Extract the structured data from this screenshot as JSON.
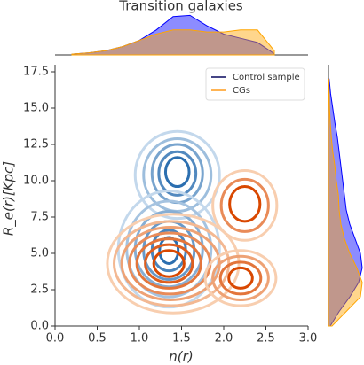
{
  "chart_data": {
    "type": "kde",
    "title": "Transition galaxies",
    "x_label": "n(r)",
    "y_label": "R_e(r)[Kpc]",
    "xlim": [
      0,
      3
    ],
    "ylim": [
      0,
      17.5
    ],
    "xticks": [
      {
        "value": 0,
        "label": "0.0"
      },
      0.5,
      {
        "value": 1,
        "label": "1.0"
      },
      1.5,
      {
        "value": 2,
        "label": "2.0"
      },
      2.5,
      {
        "value": 3,
        "label": "3.0"
      }
    ],
    "yticks": [
      {
        "value": 0,
        "label": "0.0"
      },
      2.5,
      {
        "value": 5,
        "label": "5.0"
      },
      7.5,
      {
        "value": 10,
        "label": "10.0"
      },
      12.5,
      {
        "value": 15,
        "label": "15.0"
      },
      17.5
    ],
    "legend_position": "upper right",
    "series": [
      {
        "name": "Control sample",
        "color": "#0000ff",
        "legend_color": "#08085e",
        "contour_colors": [
          "#deebf7",
          "#2c6fb0"
        ],
        "contours": [
          [
            [
              1.45,
              10.4,
              0.5,
              3.0
            ],
            [
              1.45,
              10.4,
              0.4,
              2.5
            ],
            [
              1.45,
              10.5,
              0.3,
              2.0
            ],
            [
              1.45,
              10.5,
              0.22,
              1.5
            ],
            [
              1.45,
              10.6,
              0.14,
              1.0
            ]
          ],
          [
            [
              1.35,
              5.3,
              0.6,
              4.0
            ],
            [
              1.35,
              5.3,
              0.5,
              3.3
            ],
            [
              1.35,
              5.3,
              0.4,
              2.6
            ],
            [
              1.35,
              5.2,
              0.3,
              2.0
            ],
            [
              1.35,
              5.2,
              0.2,
              1.4
            ],
            [
              1.35,
              5.2,
              0.11,
              0.9
            ]
          ]
        ]
      },
      {
        "name": "CGs",
        "color": "#ffa500",
        "legend_color": "#ff9a1a",
        "contour_colors": [
          "#fee6ce",
          "#d94801"
        ],
        "contours": [
          [
            [
              2.25,
              8.3,
              0.38,
              2.4
            ],
            [
              2.25,
              8.3,
              0.28,
              1.8
            ],
            [
              2.25,
              8.4,
              0.18,
              1.2
            ]
          ],
          [
            [
              1.4,
              4.3,
              0.78,
              3.4
            ],
            [
              1.38,
              4.3,
              0.68,
              2.9
            ],
            [
              1.37,
              4.3,
              0.58,
              2.5
            ],
            [
              1.36,
              4.3,
              0.48,
              2.1
            ],
            [
              1.35,
              4.3,
              0.38,
              1.7
            ],
            [
              1.35,
              4.3,
              0.28,
              1.3
            ],
            [
              1.35,
              4.3,
              0.18,
              0.9
            ]
          ],
          [
            [
              2.2,
              3.3,
              0.42,
              1.9
            ],
            [
              2.2,
              3.3,
              0.33,
              1.5
            ],
            [
              2.2,
              3.3,
              0.24,
              1.1
            ],
            [
              2.2,
              3.3,
              0.14,
              0.7
            ]
          ]
        ]
      }
    ],
    "marginal_top": {
      "x": [
        0.2,
        0.4,
        0.6,
        0.8,
        1.0,
        1.2,
        1.4,
        1.6,
        1.8,
        2.0,
        2.2,
        2.4,
        2.6
      ],
      "series": [
        {
          "name": "Control sample",
          "values": [
            0.02,
            0.05,
            0.1,
            0.2,
            0.35,
            0.6,
            0.92,
            0.95,
            0.7,
            0.5,
            0.4,
            0.3,
            0.03
          ]
        },
        {
          "name": "CGs",
          "values": [
            0.02,
            0.05,
            0.1,
            0.2,
            0.35,
            0.5,
            0.6,
            0.6,
            0.55,
            0.55,
            0.6,
            0.6,
            0.1
          ]
        }
      ]
    },
    "marginal_right": {
      "y": [
        0,
        1,
        2,
        3,
        4,
        5,
        6,
        7,
        8,
        9,
        10,
        11,
        12,
        13,
        14,
        15,
        16,
        17
      ],
      "series": [
        {
          "name": "Control sample",
          "values": [
            0.05,
            0.3,
            0.6,
            0.85,
            0.95,
            0.9,
            0.75,
            0.6,
            0.5,
            0.45,
            0.4,
            0.35,
            0.3,
            0.25,
            0.18,
            0.12,
            0.06,
            0.02
          ]
        },
        {
          "name": "CGs",
          "values": [
            0.1,
            0.5,
            0.9,
            0.95,
            0.8,
            0.6,
            0.45,
            0.35,
            0.3,
            0.28,
            0.22,
            0.18,
            0.12,
            0.08,
            0.05,
            0.03,
            0.02,
            0.01
          ]
        }
      ]
    }
  }
}
